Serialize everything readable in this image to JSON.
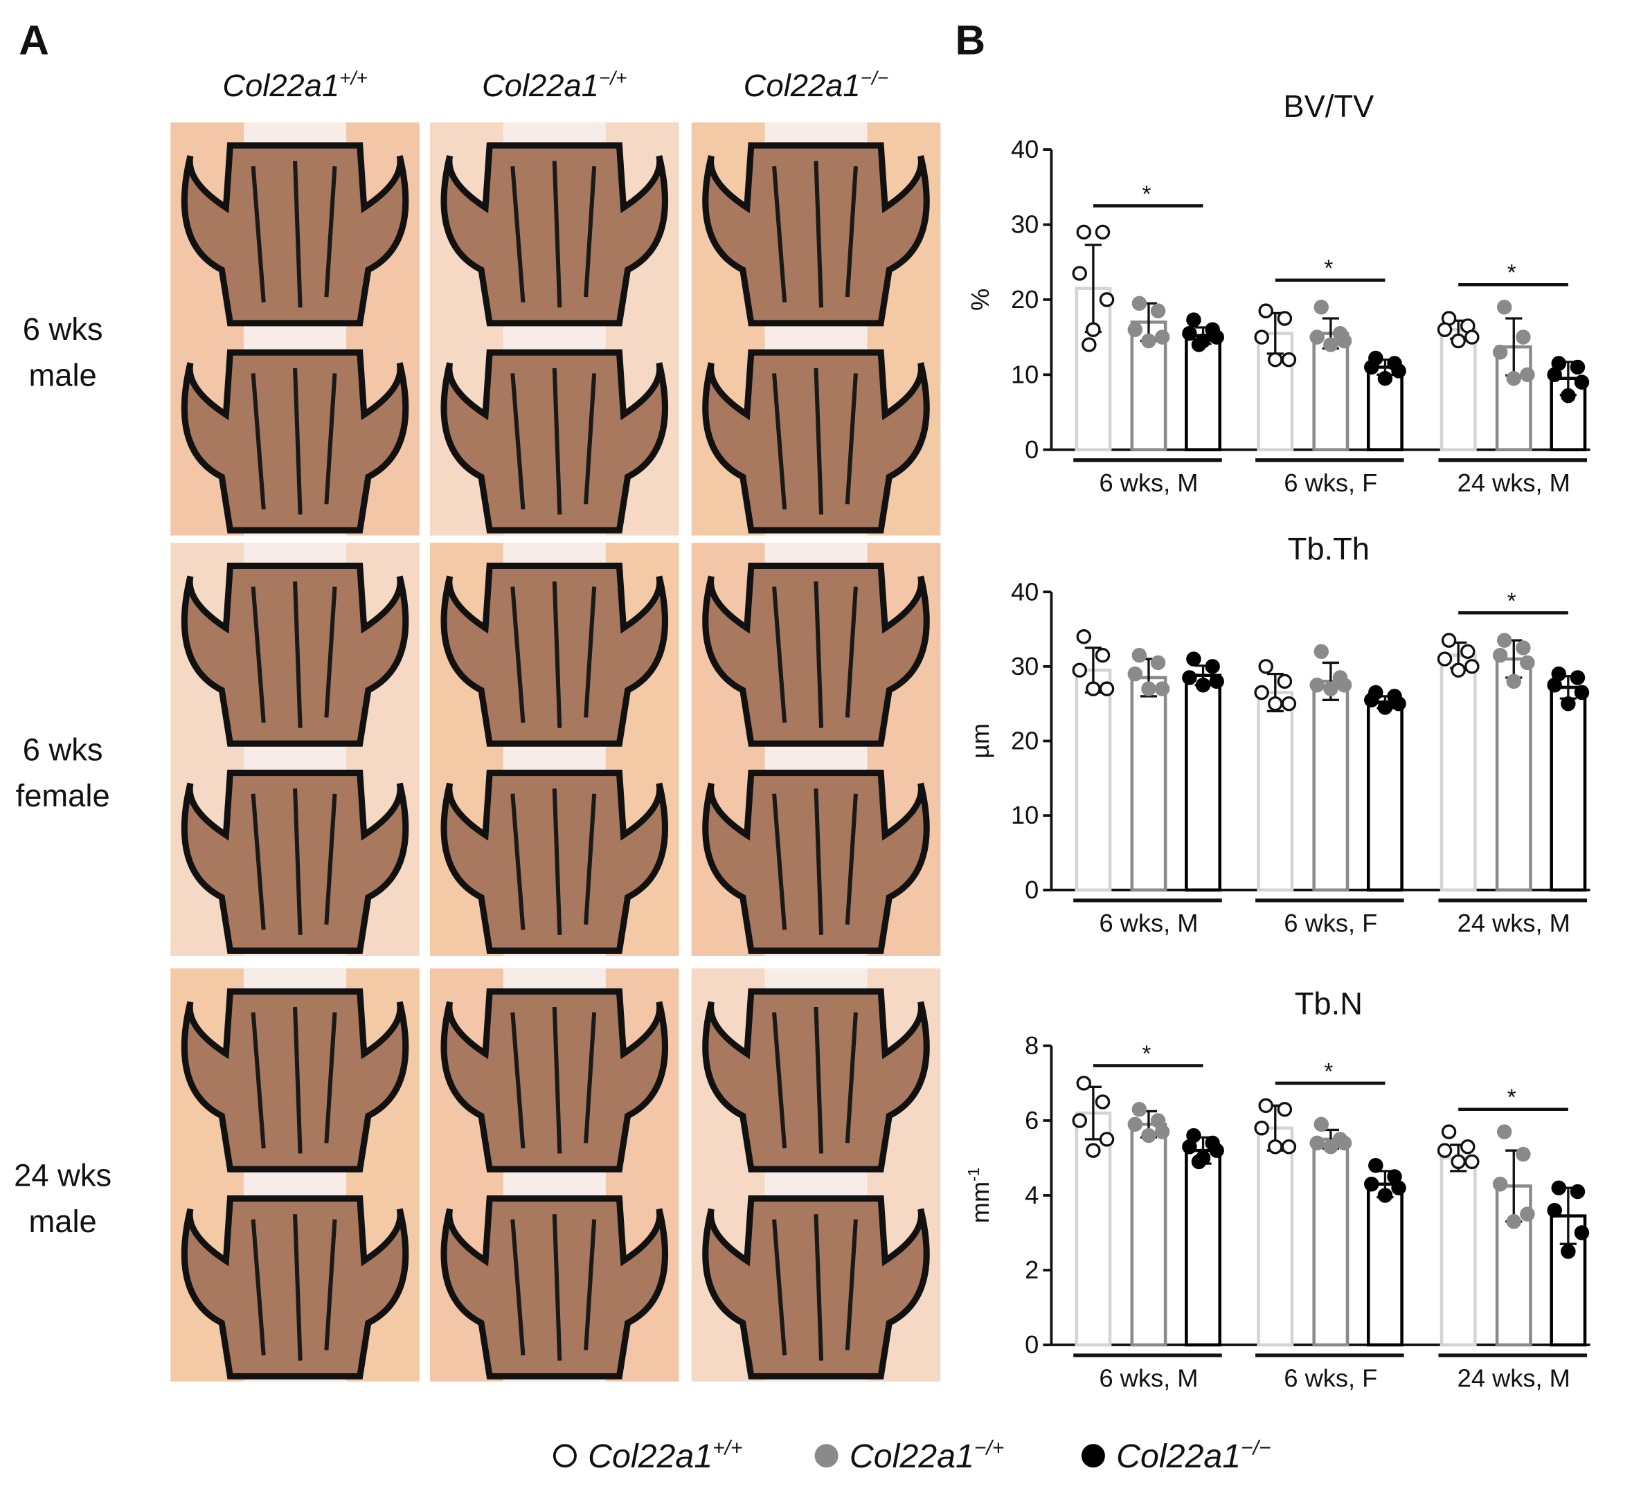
{
  "panel_a": {
    "label": "A",
    "columns": [
      {
        "gene": "Col22a1",
        "alleles": "+/+"
      },
      {
        "gene": "Col22a1",
        "alleles": "−/+"
      },
      {
        "gene": "Col22a1",
        "alleles": "−/−"
      }
    ],
    "rows": [
      [
        "6 wks",
        "male"
      ],
      [
        "6 wks",
        "female"
      ],
      [
        "24 wks",
        "male"
      ]
    ]
  },
  "panel_b": {
    "label": "B"
  },
  "legend": [
    {
      "gene": "Col22a1",
      "alleles": "+/+",
      "bar_color": "#d4d4d4",
      "dot_fill": "#ffffff",
      "dot_stroke": "#111111"
    },
    {
      "gene": "Col22a1",
      "alleles": "−/+",
      "bar_color": "#8a8a8a",
      "dot_fill": "#8a8a8a",
      "dot_stroke": "#8a8a8a"
    },
    {
      "gene": "Col22a1",
      "alleles": "−/−",
      "bar_color": "#000000",
      "dot_fill": "#000000",
      "dot_stroke": "#000000"
    }
  ],
  "chart_data": [
    {
      "type": "bar",
      "title": "BV/TV",
      "ylabel": "%",
      "categories": [
        "6 wks, M",
        "6 wks, F",
        "24 wks, M"
      ],
      "ylim": [
        0,
        40
      ],
      "yticks": [
        0,
        10,
        20,
        30,
        40
      ],
      "series": [
        {
          "values": [
            21.5,
            15.5,
            16
          ],
          "errors": [
            5.8,
            2.7,
            1.2
          ],
          "points": [
            [
              29,
              29,
              23.5,
              20,
              16,
              14
            ],
            [
              18.5,
              17.5,
              15,
              12,
              12
            ],
            [
              17.5,
              16.5,
              16,
              15,
              14.5
            ]
          ]
        },
        {
          "values": [
            17,
            15.5,
            13.7
          ],
          "errors": [
            2.5,
            2.0,
            3.8
          ],
          "points": [
            [
              19.5,
              18.5,
              16,
              15,
              14.5
            ],
            [
              19,
              15.5,
              15,
              14.5,
              14
            ],
            [
              19,
              15,
              13,
              10,
              9.5
            ]
          ]
        },
        {
          "values": [
            15.2,
            11,
            9.5
          ],
          "errors": [
            1.1,
            1.0,
            2.2
          ],
          "points": [
            [
              17.3,
              16,
              15.5,
              15,
              14.5,
              14
            ],
            [
              12.2,
              11.5,
              11,
              10.5,
              9.5
            ],
            [
              11.5,
              11,
              10,
              9,
              7.2
            ]
          ]
        }
      ],
      "significance": [
        {
          "category_index": 0,
          "y": 32.5,
          "label": "*"
        },
        {
          "category_index": 1,
          "y": 22.6,
          "label": "*"
        },
        {
          "category_index": 2,
          "y": 22,
          "label": "*"
        }
      ]
    },
    {
      "type": "bar",
      "title": "Tb.Th",
      "ylabel": "µm",
      "categories": [
        "6 wks, M",
        "6 wks, F",
        "24 wks, M"
      ],
      "ylim": [
        0,
        40
      ],
      "yticks": [
        0,
        10,
        20,
        30,
        40
      ],
      "series": [
        {
          "values": [
            29.5,
            26.5,
            31.5
          ],
          "errors": [
            3,
            2.5,
            1.7
          ],
          "points": [
            [
              34,
              31.5,
              29.5,
              27,
              27
            ],
            [
              30,
              28,
              26.5,
              25,
              25
            ],
            [
              33.5,
              32,
              31,
              30,
              29.5
            ]
          ]
        },
        {
          "values": [
            28.5,
            28,
            31
          ],
          "errors": [
            2.5,
            2.5,
            2.5
          ],
          "points": [
            [
              31.5,
              30.5,
              29,
              27,
              27
            ],
            [
              32,
              28.5,
              27.5,
              27.5,
              27
            ],
            [
              33.5,
              32.5,
              31.5,
              30.5,
              28
            ]
          ]
        },
        {
          "values": [
            28.8,
            25.2,
            27.2
          ],
          "errors": [
            1.3,
            0.8,
            1.5
          ],
          "points": [
            [
              31,
              30,
              28.5,
              28,
              27.5
            ],
            [
              26.5,
              26,
              25.5,
              25,
              24.5
            ],
            [
              29,
              28.5,
              27.5,
              26.5,
              25
            ]
          ]
        }
      ],
      "significance": [
        {
          "category_index": 2,
          "y": 37.2,
          "label": "*"
        }
      ]
    },
    {
      "type": "bar",
      "title": "Tb.N",
      "ylabel": "mm",
      "ylabel_sup": "-1",
      "categories": [
        "6 wks, M",
        "6 wks, F",
        "24 wks, M"
      ],
      "ylim": [
        0,
        8
      ],
      "yticks": [
        0,
        2,
        4,
        6,
        8
      ],
      "series": [
        {
          "values": [
            6.2,
            5.8,
            5.0
          ],
          "errors": [
            0.7,
            0.6,
            0.35
          ],
          "points": [
            [
              7.0,
              6.5,
              6.0,
              5.5,
              5.2
            ],
            [
              6.4,
              6.3,
              5.8,
              5.3,
              5.3
            ],
            [
              5.7,
              5.3,
              5.2,
              4.9,
              4.9
            ]
          ]
        },
        {
          "values": [
            5.9,
            5.5,
            4.25
          ],
          "errors": [
            0.35,
            0.25,
            0.95
          ],
          "points": [
            [
              6.3,
              6.0,
              5.9,
              5.7,
              5.6
            ],
            [
              5.9,
              5.5,
              5.4,
              5.4,
              5.3
            ],
            [
              5.7,
              5.1,
              4.3,
              3.5,
              3.3
            ]
          ]
        },
        {
          "values": [
            5.2,
            4.3,
            3.45
          ],
          "errors": [
            0.35,
            0.35,
            0.75
          ],
          "points": [
            [
              5.6,
              5.4,
              5.3,
              5.2,
              5.0,
              4.9
            ],
            [
              4.8,
              4.5,
              4.3,
              4.2,
              4.0
            ],
            [
              4.2,
              4.1,
              3.6,
              3.0,
              2.5
            ]
          ]
        }
      ],
      "significance": [
        {
          "category_index": 0,
          "y": 7.47,
          "label": "*"
        },
        {
          "category_index": 1,
          "y": 7.0,
          "label": "*"
        },
        {
          "category_index": 2,
          "y": 6.3,
          "label": "*"
        }
      ]
    }
  ]
}
